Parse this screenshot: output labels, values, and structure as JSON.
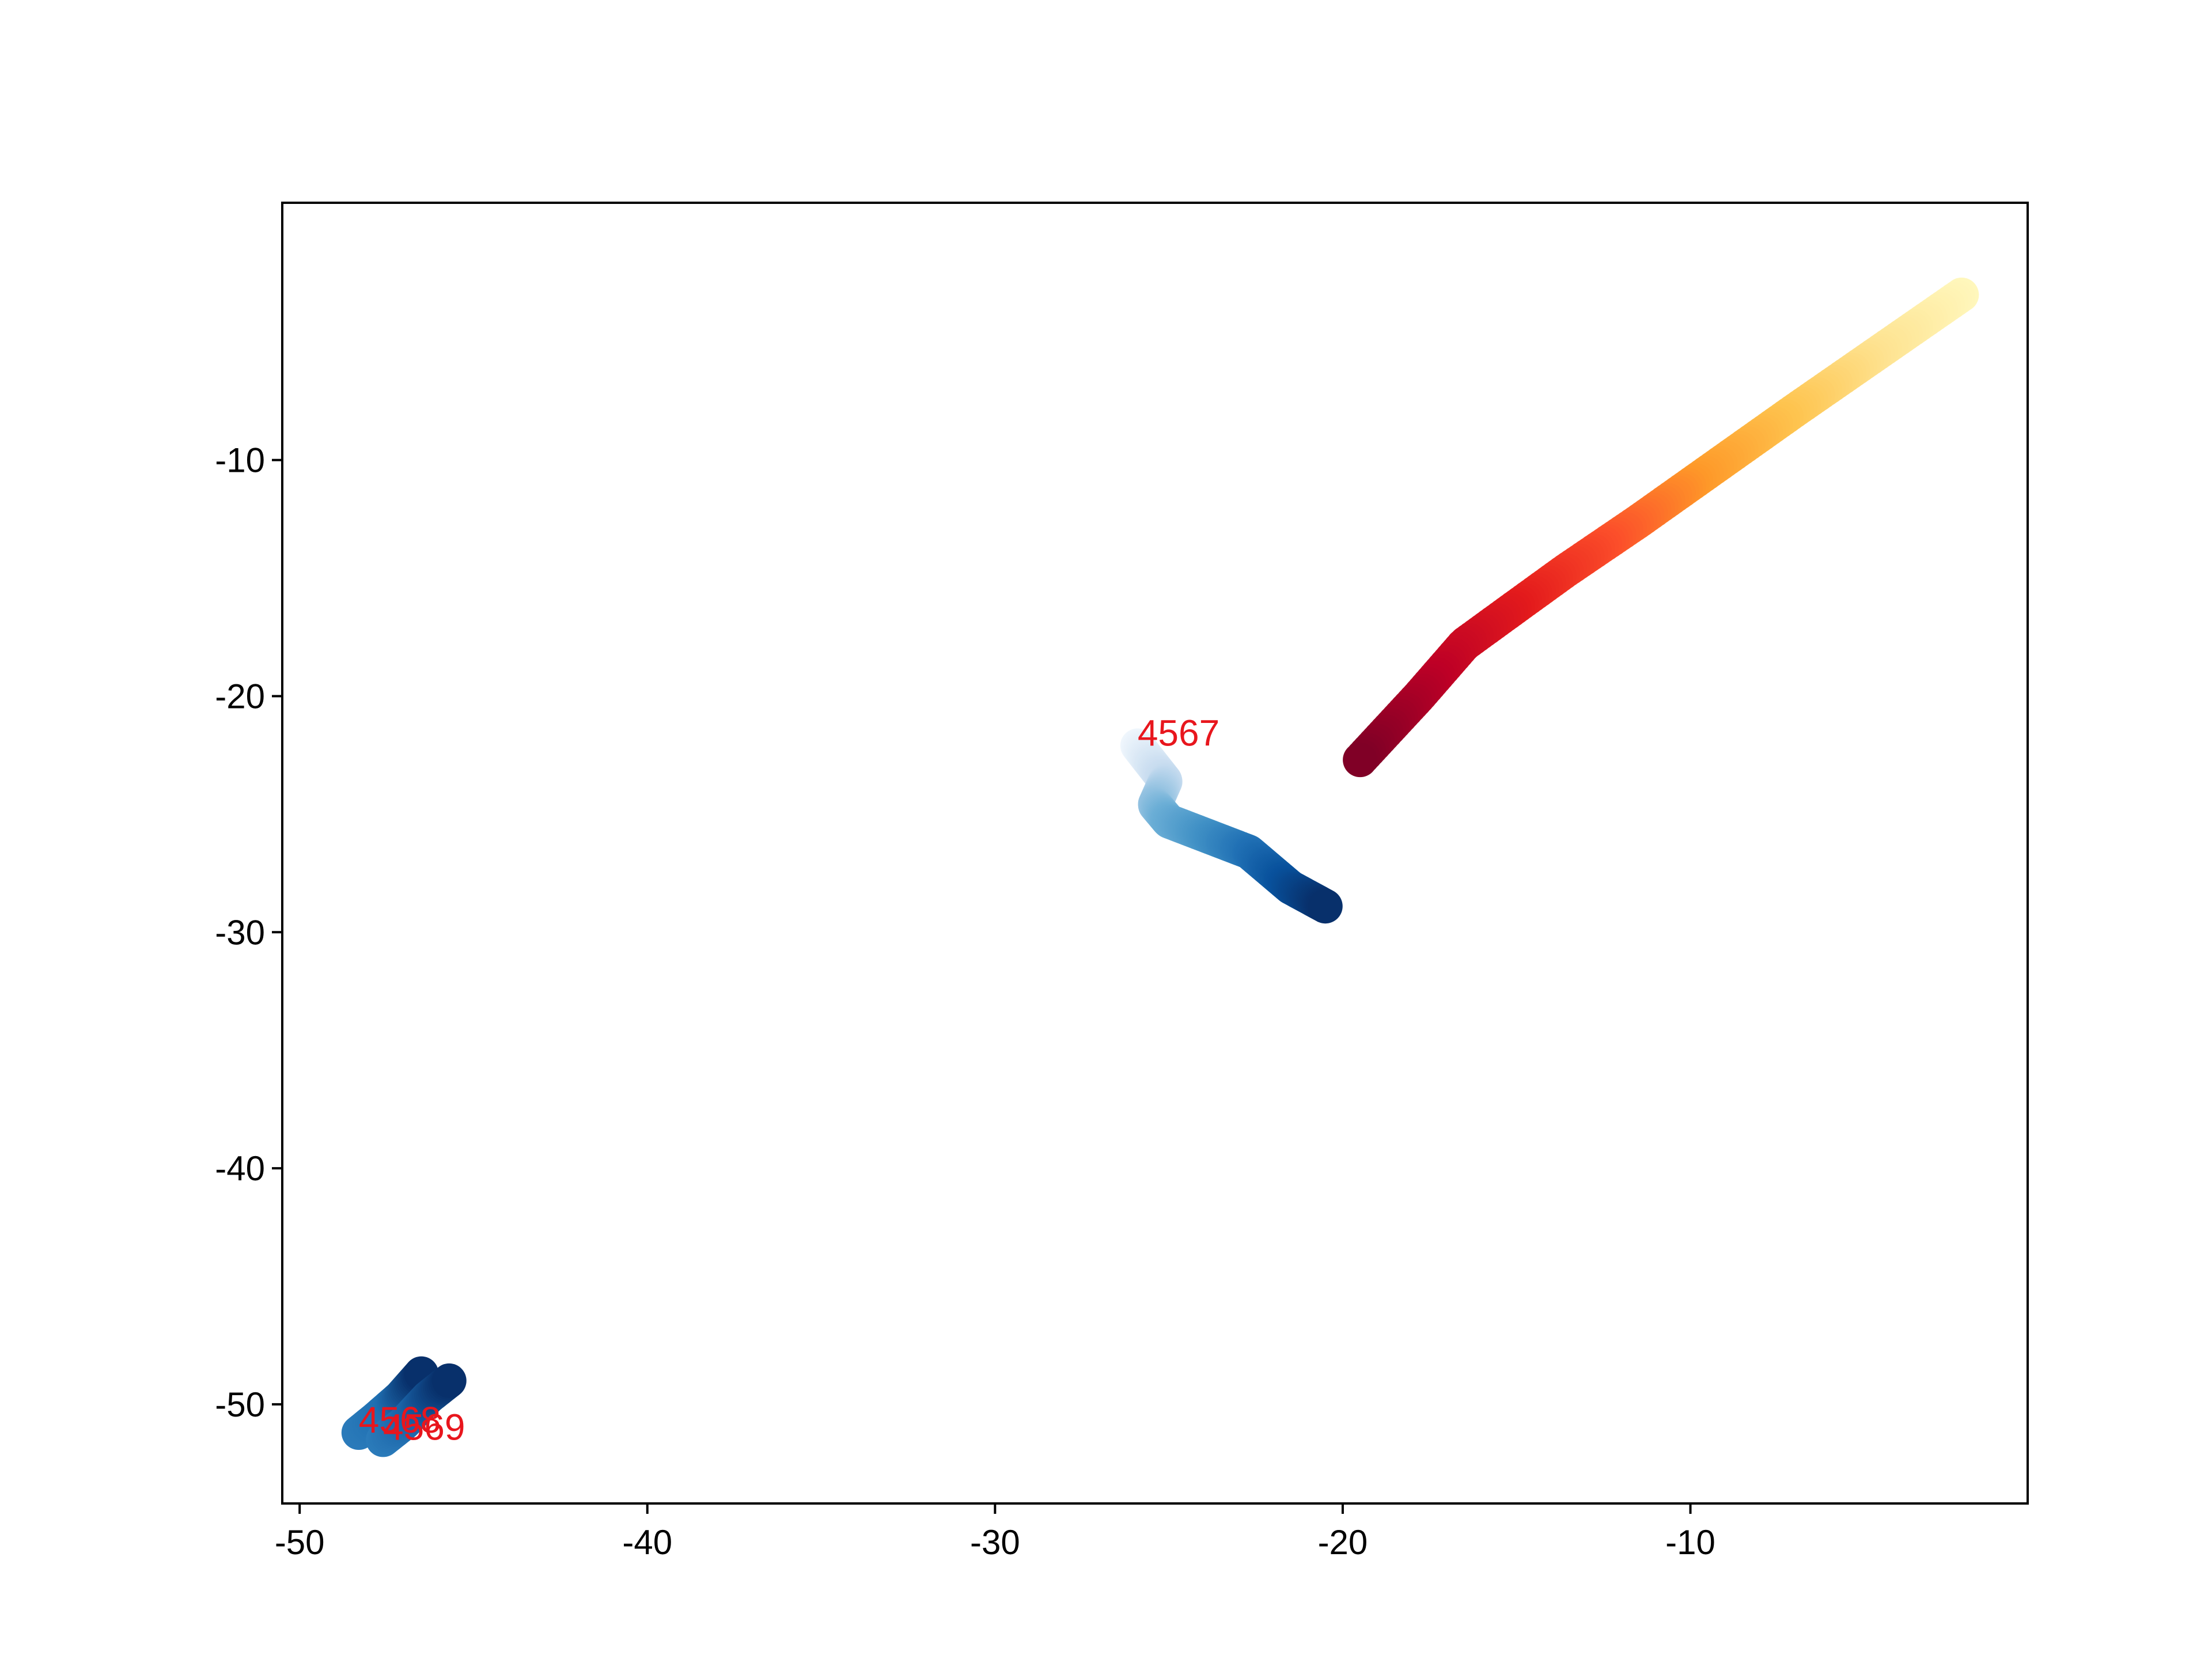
{
  "chart_data": {
    "type": "scatter",
    "title": "",
    "xlabel": "",
    "ylabel": "",
    "xlim": [
      -50.5,
      -0.3
    ],
    "ylim": [
      -54.2,
      0.9
    ],
    "xticks": [
      -50,
      -40,
      -30,
      -20,
      -10
    ],
    "yticks": [
      -10,
      -20,
      -30,
      -40,
      -50
    ],
    "xtick_labels": [
      "-50",
      "-40",
      "-30",
      "-20",
      "-10"
    ],
    "ytick_labels": [
      "-10",
      "-20",
      "-30",
      "-40",
      "-50"
    ],
    "grid": false,
    "legend": "none",
    "series": [
      {
        "id": "4566",
        "colormap": [
          "#fff7bc",
          "#fee391",
          "#fec44f",
          "#fe9929",
          "#fc4e2a",
          "#e31a1c",
          "#bd0026",
          "#800026"
        ],
        "points": [
          [
            -2.2,
            -3.0
          ],
          [
            -7.0,
            -7.9
          ],
          [
            -11.5,
            -12.6
          ],
          [
            -13.6,
            -14.7
          ],
          [
            -15.1,
            -16.3
          ],
          [
            -16.5,
            -17.8
          ],
          [
            -17.8,
            -20.0
          ],
          [
            -19.5,
            -22.7
          ]
        ]
      },
      {
        "id": "4567",
        "colormap": [
          "#eff6fc",
          "#c6dbef",
          "#6baed6",
          "#4292c6",
          "#2171b5",
          "#08519c",
          "#08306b"
        ],
        "points": [
          [
            -25.9,
            -22.1
          ],
          [
            -25.1,
            -23.6
          ],
          [
            -25.4,
            -24.6
          ],
          [
            -25.0,
            -25.3
          ],
          [
            -22.7,
            -26.6
          ],
          [
            -21.5,
            -28.1
          ],
          [
            -20.5,
            -28.9
          ]
        ]
      },
      {
        "id": "4568",
        "colormap": [
          "#2b7bba",
          "#1f6fb1",
          "#08306b"
        ],
        "points": [
          [
            -48.3,
            -51.2
          ],
          [
            -47.8,
            -50.6
          ],
          [
            -47.1,
            -49.7
          ],
          [
            -46.5,
            -48.7
          ]
        ]
      },
      {
        "id": "4569",
        "colormap": [
          "#2b7bba",
          "#1a63a7",
          "#08306b"
        ],
        "points": [
          [
            -47.6,
            -51.5
          ],
          [
            -47.0,
            -50.8
          ],
          [
            -46.3,
            -49.7
          ],
          [
            -45.7,
            -49.0
          ]
        ]
      }
    ],
    "annotations": [
      {
        "text": "4567",
        "x": -25.9,
        "y": -22.1
      },
      {
        "text": "4568",
        "x": -48.3,
        "y": -51.2
      },
      {
        "text": "4569",
        "x": -47.6,
        "y": -51.5
      }
    ]
  }
}
